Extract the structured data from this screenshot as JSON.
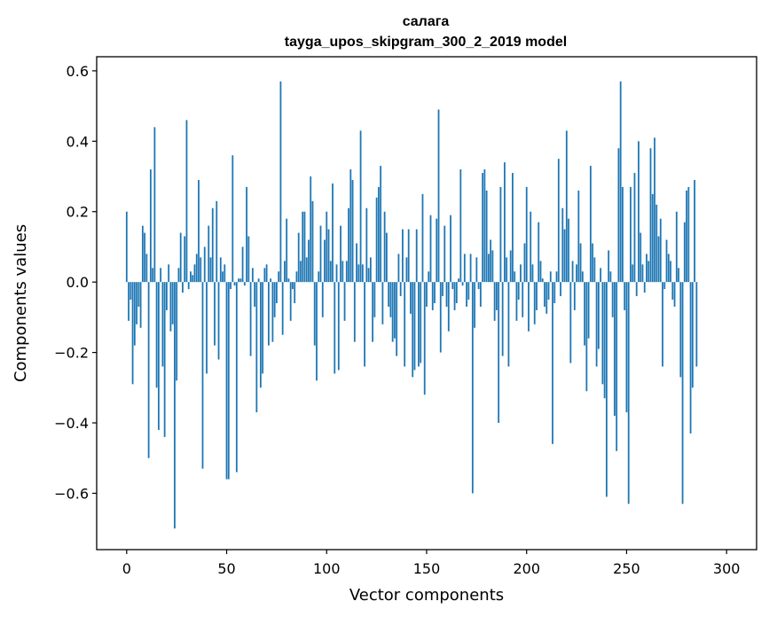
{
  "chart_data": {
    "type": "bar",
    "title": "салага",
    "subtitle": "tayga_upos_skipgram_300_2_2019 model",
    "xlabel": "Vector components",
    "ylabel": "Components values",
    "xlim": [
      -15,
      315
    ],
    "ylim": [
      -0.76,
      0.64
    ],
    "xticks": [
      0,
      50,
      100,
      150,
      200,
      250,
      300
    ],
    "yticks": [
      -0.6,
      -0.4,
      -0.2,
      0.0,
      0.2,
      0.4,
      0.6
    ],
    "ytick_labels": [
      "−0.6",
      "−0.4",
      "−0.2",
      "0.0",
      "0.2",
      "0.4",
      "0.6"
    ],
    "bar_color": "#1f77b4",
    "x_start": 0,
    "values": [
      0.2,
      -0.11,
      -0.05,
      -0.29,
      -0.18,
      -0.12,
      -0.07,
      -0.13,
      0.16,
      0.14,
      0.08,
      -0.5,
      0.32,
      0.04,
      0.44,
      -0.3,
      -0.42,
      0.04,
      -0.24,
      -0.44,
      -0.08,
      0.05,
      -0.14,
      -0.12,
      -0.7,
      -0.28,
      0.04,
      0.14,
      -0.03,
      0.13,
      0.46,
      -0.02,
      0.03,
      0.02,
      0.05,
      0.08,
      0.29,
      0.07,
      -0.53,
      0.1,
      -0.26,
      0.16,
      0.07,
      0.21,
      -0.18,
      0.23,
      -0.22,
      0.07,
      0.03,
      0.05,
      -0.56,
      -0.56,
      -0.02,
      0.36,
      -0.01,
      -0.54,
      0.01,
      0.01,
      0.1,
      -0.01,
      0.27,
      0.13,
      -0.21,
      0.04,
      -0.07,
      -0.37,
      0.01,
      -0.3,
      -0.26,
      0.04,
      0.05,
      -0.18,
      0.01,
      -0.17,
      -0.1,
      -0.06,
      0.03,
      0.57,
      -0.15,
      0.06,
      0.18,
      0.01,
      -0.11,
      -0.02,
      -0.06,
      0.03,
      0.14,
      0.06,
      0.2,
      0.2,
      0.07,
      0.12,
      0.3,
      0.23,
      -0.18,
      -0.28,
      0.03,
      0.16,
      -0.1,
      0.12,
      0.2,
      0.15,
      0.06,
      0.28,
      -0.26,
      0.05,
      -0.25,
      0.16,
      0.06,
      -0.11,
      0.06,
      0.21,
      0.32,
      0.29,
      -0.17,
      0.11,
      0.05,
      0.43,
      0.05,
      -0.24,
      0.21,
      0.04,
      0.07,
      -0.17,
      -0.1,
      0.24,
      0.27,
      0.33,
      -0.12,
      0.2,
      0.14,
      -0.07,
      -0.1,
      -0.17,
      -0.16,
      -0.21,
      0.08,
      -0.04,
      0.15,
      -0.24,
      0.07,
      0.15,
      -0.09,
      -0.27,
      -0.25,
      0.15,
      -0.24,
      -0.23,
      0.25,
      -0.32,
      -0.07,
      0.03,
      0.19,
      -0.08,
      -0.06,
      0.18,
      0.49,
      -0.2,
      -0.04,
      0.16,
      -0.07,
      -0.14,
      0.19,
      -0.02,
      -0.08,
      -0.06,
      0.01,
      0.32,
      -0.01,
      0.08,
      -0.07,
      -0.05,
      0.08,
      -0.6,
      -0.13,
      0.07,
      -0.02,
      -0.07,
      0.31,
      0.32,
      0.26,
      0.08,
      0.12,
      0.09,
      -0.11,
      -0.08,
      -0.4,
      0.27,
      -0.21,
      0.34,
      0.07,
      -0.24,
      0.09,
      0.31,
      0.03,
      -0.11,
      -0.05,
      0.05,
      -0.1,
      0.11,
      0.27,
      -0.14,
      0.2,
      0.05,
      -0.12,
      -0.08,
      0.17,
      0.06,
      0.01,
      -0.07,
      -0.09,
      -0.05,
      0.03,
      -0.46,
      -0.06,
      0.03,
      0.35,
      -0.04,
      0.21,
      0.15,
      0.43,
      0.18,
      -0.23,
      0.06,
      -0.08,
      0.05,
      0.26,
      0.11,
      0.03,
      -0.18,
      -0.31,
      -0.16,
      0.33,
      0.11,
      0.07,
      -0.24,
      -0.19,
      0.04,
      -0.29,
      -0.33,
      -0.61,
      0.09,
      0.03,
      -0.1,
      -0.38,
      -0.48,
      0.38,
      0.57,
      0.27,
      -0.08,
      -0.37,
      -0.63,
      0.27,
      0.05,
      0.31,
      -0.04,
      0.4,
      0.14,
      0.05,
      -0.03,
      0.08,
      0.06,
      0.38,
      0.25,
      0.41,
      0.22,
      0.13,
      0.18,
      -0.24,
      -0.02,
      0.12,
      0.08,
      0.06,
      -0.05,
      -0.07,
      0.2,
      0.04,
      -0.27,
      -0.63,
      0.17,
      0.26,
      0.27,
      -0.43,
      -0.3,
      0.29,
      -0.24
    ]
  }
}
